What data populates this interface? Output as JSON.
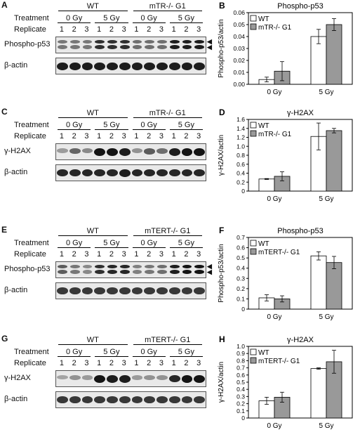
{
  "panels": [
    {
      "id": "A",
      "letter": "A",
      "groups": [
        "WT",
        "mTR-/- G1"
      ],
      "treatment_label": "Treatment",
      "replicate_label": "Replicate",
      "treatments": [
        "0 Gy",
        "5 Gy",
        "0 Gy",
        "5 Gy"
      ],
      "replicates": [
        "1",
        "2",
        "3",
        "1",
        "2",
        "3",
        "1",
        "2",
        "3",
        "1",
        "2",
        "3"
      ],
      "rows": [
        {
          "label": "Phospho-p53",
          "intensity": [
            0.45,
            0.45,
            0.45,
            0.85,
            0.85,
            0.85,
            0.5,
            0.5,
            0.5,
            0.95,
            0.95,
            0.95
          ],
          "double": true
        },
        {
          "label": "β-actin",
          "intensity": [
            0.95,
            0.95,
            0.95,
            0.95,
            0.95,
            0.95,
            0.95,
            0.95,
            0.95,
            0.95,
            0.95,
            0.95
          ],
          "double": false
        }
      ],
      "arrows": true
    },
    {
      "id": "C",
      "letter": "C",
      "groups": [
        "WT",
        "mTR-/- G1"
      ],
      "treatment_label": "Treatment",
      "replicate_label": "Replicate",
      "treatments": [
        "0 Gy",
        "5 Gy",
        "0 Gy",
        "5 Gy"
      ],
      "replicates": [
        "1",
        "2",
        "3",
        "1",
        "2",
        "3",
        "1",
        "2",
        "3",
        "1",
        "2",
        "3"
      ],
      "rows": [
        {
          "label": "γ-H2AX",
          "intensity": [
            0.25,
            0.55,
            0.35,
            1.0,
            1.0,
            0.95,
            0.3,
            0.6,
            0.5,
            0.95,
            1.0,
            1.0
          ],
          "double": false
        },
        {
          "label": "β-actin",
          "intensity": [
            0.9,
            0.9,
            0.9,
            0.9,
            0.9,
            0.95,
            0.9,
            0.9,
            0.9,
            0.9,
            0.9,
            0.9
          ],
          "double": false
        }
      ],
      "arrows": false
    },
    {
      "id": "E",
      "letter": "E",
      "groups": [
        "WT",
        "mTERT-/- G1"
      ],
      "treatment_label": "Treatment",
      "replicate_label": "Replicate",
      "treatments": [
        "0 Gy",
        "5 Gy",
        "0 Gy",
        "5 Gy"
      ],
      "replicates": [
        "1",
        "2",
        "3",
        "1",
        "2",
        "3",
        "1",
        "2",
        "3",
        "1",
        "2",
        "3"
      ],
      "rows": [
        {
          "label": "Phospho-p53",
          "intensity": [
            0.6,
            0.45,
            0.35,
            0.85,
            0.9,
            0.9,
            0.4,
            0.45,
            0.5,
            0.95,
            1.0,
            1.0
          ],
          "double": true
        },
        {
          "label": "β-actin",
          "intensity": [
            0.8,
            0.8,
            0.8,
            0.8,
            0.8,
            0.8,
            0.8,
            0.8,
            0.8,
            0.8,
            0.8,
            0.8
          ],
          "double": false
        }
      ],
      "arrows": true
    },
    {
      "id": "G",
      "letter": "G",
      "groups": [
        "WT",
        "mTERT-/- G1"
      ],
      "treatment_label": "Treatment",
      "replicate_label": "Replicate",
      "treatments": [
        "0 Gy",
        "5 Gy",
        "0 Gy",
        "5 Gy"
      ],
      "replicates": [
        "1",
        "2",
        "3",
        "1",
        "2",
        "3",
        "1",
        "2",
        "3",
        "1",
        "2",
        "3"
      ],
      "rows": [
        {
          "label": "γ-H2AX",
          "intensity": [
            0.2,
            0.3,
            0.25,
            1.0,
            0.95,
            0.95,
            0.25,
            0.3,
            0.3,
            0.9,
            1.0,
            1.0
          ],
          "double": false
        },
        {
          "label": "β-actin",
          "intensity": [
            0.8,
            0.8,
            0.8,
            0.8,
            0.8,
            0.8,
            0.8,
            0.8,
            0.8,
            0.8,
            0.8,
            0.8
          ],
          "double": false
        }
      ],
      "arrows": false
    }
  ],
  "chart_data": [
    {
      "id": "B",
      "letter": "B",
      "type": "bar",
      "title": "Phospho-p53",
      "ylabel": "Phospho-p53/actin",
      "xlabel": "",
      "categories": [
        "0 Gy",
        "5 Gy"
      ],
      "ylim": [
        0,
        0.06
      ],
      "yticks": [
        "0.00",
        "0.01",
        "0.02",
        "0.03",
        "0.04",
        "0.05",
        "0.06"
      ],
      "series": [
        {
          "name": "WT",
          "values": [
            0.004,
            0.04
          ],
          "errors": [
            0.002,
            0.006
          ],
          "color": "#ffffff"
        },
        {
          "name": "mTR-/- G1",
          "values": [
            0.011,
            0.05
          ],
          "errors": [
            0.008,
            0.005
          ],
          "color": "#999999"
        }
      ],
      "legend": "top-left"
    },
    {
      "id": "D",
      "letter": "D",
      "type": "bar",
      "title": "γ-H2AX",
      "ylabel": "γ-H2AX/actin",
      "xlabel": "",
      "categories": [
        "0 Gy",
        "5 Gy"
      ],
      "ylim": [
        0,
        1.6
      ],
      "yticks": [
        "0",
        "0.2",
        "0.4",
        "0.6",
        "0.8",
        "1.0",
        "1.2",
        "1.4",
        "1.6"
      ],
      "series": [
        {
          "name": "WT",
          "values": [
            0.27,
            1.22
          ],
          "errors": [
            0.01,
            0.3
          ],
          "color": "#ffffff"
        },
        {
          "name": "mTR-/- G1",
          "values": [
            0.33,
            1.35
          ],
          "errors": [
            0.1,
            0.05
          ],
          "color": "#999999"
        }
      ],
      "legend": "top-left"
    },
    {
      "id": "F",
      "letter": "F",
      "type": "bar",
      "title": "Phospho-p53",
      "ylabel": "Phospho-p53/actin",
      "xlabel": "",
      "categories": [
        "0 Gy",
        "5 Gy"
      ],
      "ylim": [
        0,
        0.7
      ],
      "yticks": [
        "0",
        "0.1",
        "0.2",
        "0.3",
        "0.4",
        "0.5",
        "0.6",
        "0.7"
      ],
      "series": [
        {
          "name": "WT",
          "values": [
            0.11,
            0.52
          ],
          "errors": [
            0.03,
            0.04
          ],
          "color": "#ffffff"
        },
        {
          "name": "mTERT-/- G1",
          "values": [
            0.1,
            0.455
          ],
          "errors": [
            0.03,
            0.06
          ],
          "color": "#999999"
        }
      ],
      "legend": "top-left"
    },
    {
      "id": "H",
      "letter": "H",
      "type": "bar",
      "title": "γ-H2AX",
      "ylabel": "γ-H2AX/actin",
      "xlabel": "",
      "categories": [
        "0 Gy",
        "5 Gy"
      ],
      "ylim": [
        0,
        1.0
      ],
      "yticks": [
        "0",
        "0.1",
        "0.2",
        "0.3",
        "0.4",
        "0.5",
        "0.6",
        "0.7",
        "0.8",
        "0.9",
        "1.0"
      ],
      "series": [
        {
          "name": "WT",
          "values": [
            0.24,
            0.69
          ],
          "errors": [
            0.05,
            0.01
          ],
          "color": "#ffffff"
        },
        {
          "name": "mTERT-/- G1",
          "values": [
            0.29,
            0.785
          ],
          "errors": [
            0.07,
            0.16
          ],
          "color": "#999999"
        }
      ],
      "legend": "top-left"
    }
  ]
}
